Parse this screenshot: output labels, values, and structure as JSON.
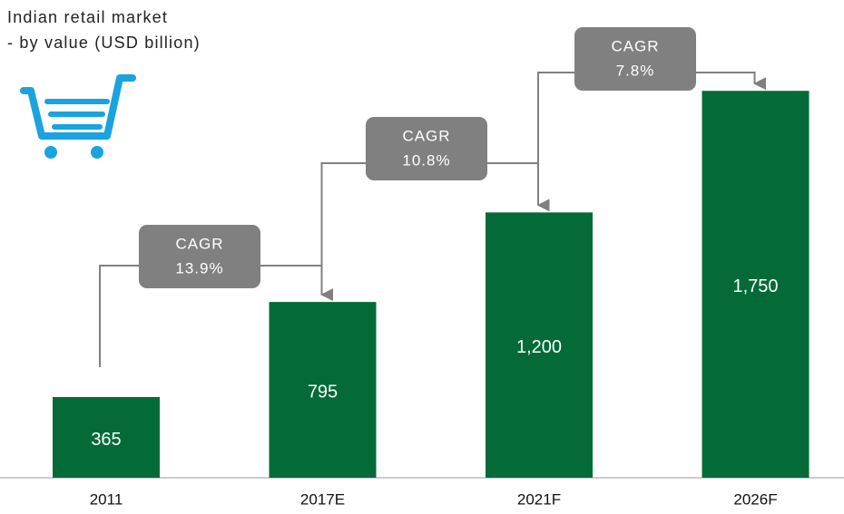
{
  "chart_data": {
    "type": "bar",
    "title": "Indian retail market",
    "subtitle": "- by value (USD billion)",
    "categories": [
      "2011",
      "2017E",
      "2021F",
      "2026F"
    ],
    "values": [
      365,
      795,
      1200,
      1750
    ],
    "value_labels": [
      "365",
      "795",
      "1,200",
      "1,750"
    ],
    "color": "#046b38",
    "ylim": [
      0,
      1800
    ],
    "annotations": [
      {
        "title": "CAGR",
        "text": "13.9%"
      },
      {
        "title": "CAGR",
        "text": "10.8%"
      },
      {
        "title": "CAGR",
        "text": "7.8%"
      }
    ]
  }
}
